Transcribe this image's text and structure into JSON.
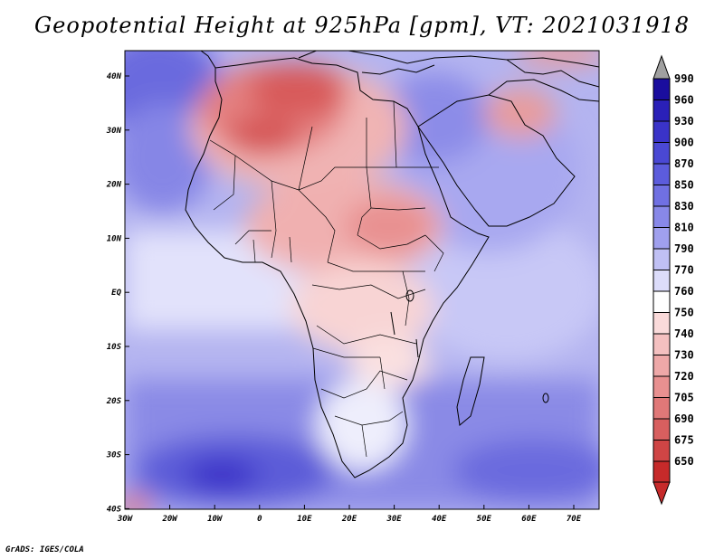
{
  "title": "Geopotential Height at 925hPa [gpm], VT: 2021031918",
  "credit": "GrADS: IGES/COLA",
  "map": {
    "region": "Africa",
    "lon_range": [
      -30,
      76
    ],
    "lat_range": [
      -40,
      46
    ],
    "lat_ticks": [
      "40N",
      "30N",
      "20N",
      "10N",
      "EQ",
      "10S",
      "20S",
      "30S",
      "40S"
    ],
    "lon_ticks": [
      "30W",
      "20W",
      "10W",
      "0",
      "10E",
      "20E",
      "30E",
      "40E",
      "50E",
      "60E",
      "70E"
    ]
  },
  "colorbar": {
    "levels": [
      "990",
      "960",
      "930",
      "900",
      "870",
      "850",
      "830",
      "810",
      "790",
      "770",
      "760",
      "750",
      "740",
      "730",
      "720",
      "705",
      "690",
      "675",
      "650"
    ],
    "colors": [
      "#1a0d9e",
      "#2a20b8",
      "#3a33c8",
      "#4a48d4",
      "#5c5cdc",
      "#7070e2",
      "#8888e8",
      "#a0a0ee",
      "#c0c0f4",
      "#dcdcfa",
      "#ffffff",
      "#fadada",
      "#f4c0c0",
      "#eea8a8",
      "#e89090",
      "#e07878",
      "#d85f5f",
      "#cf4545",
      "#c62a2a"
    ]
  }
}
